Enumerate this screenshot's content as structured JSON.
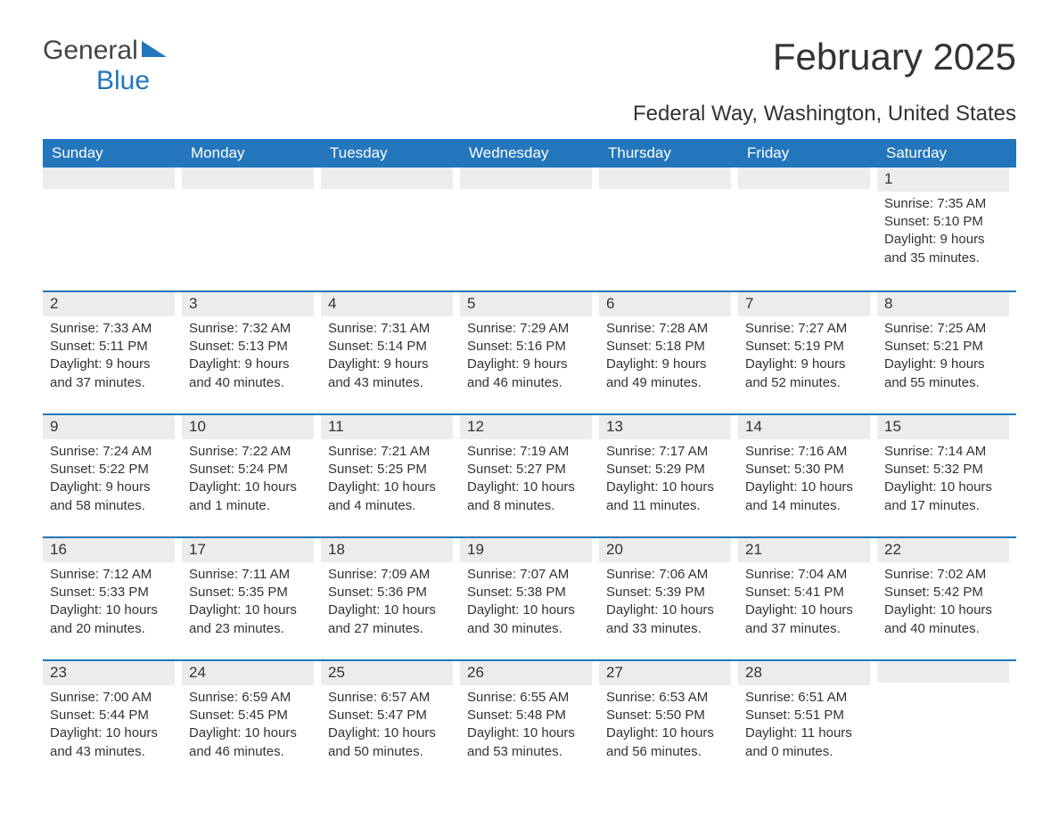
{
  "logo": {
    "word1": "General",
    "word2": "Blue",
    "flag_color": "#2376bb"
  },
  "title": "February 2025",
  "location": "Federal Way, Washington, United States",
  "colors": {
    "header_bg": "#2376bb",
    "header_text": "#ffffff",
    "daynum_bg": "#ececec",
    "divider": "#2376bb",
    "text": "#333333",
    "background": "#ffffff"
  },
  "typography": {
    "title_fontsize": 42,
    "location_fontsize": 24,
    "dow_fontsize": 17,
    "daynum_fontsize": 17,
    "body_fontsize": 15
  },
  "calendar": {
    "day_names": [
      "Sunday",
      "Monday",
      "Tuesday",
      "Wednesday",
      "Thursday",
      "Friday",
      "Saturday"
    ],
    "labels": {
      "sunrise": "Sunrise:",
      "sunset": "Sunset:",
      "daylight": "Daylight:"
    },
    "weeks": [
      [
        null,
        null,
        null,
        null,
        null,
        null,
        {
          "n": "1",
          "sunrise": "7:35 AM",
          "sunset": "5:10 PM",
          "daylight": "9 hours and 35 minutes."
        }
      ],
      [
        {
          "n": "2",
          "sunrise": "7:33 AM",
          "sunset": "5:11 PM",
          "daylight": "9 hours and 37 minutes."
        },
        {
          "n": "3",
          "sunrise": "7:32 AM",
          "sunset": "5:13 PM",
          "daylight": "9 hours and 40 minutes."
        },
        {
          "n": "4",
          "sunrise": "7:31 AM",
          "sunset": "5:14 PM",
          "daylight": "9 hours and 43 minutes."
        },
        {
          "n": "5",
          "sunrise": "7:29 AM",
          "sunset": "5:16 PM",
          "daylight": "9 hours and 46 minutes."
        },
        {
          "n": "6",
          "sunrise": "7:28 AM",
          "sunset": "5:18 PM",
          "daylight": "9 hours and 49 minutes."
        },
        {
          "n": "7",
          "sunrise": "7:27 AM",
          "sunset": "5:19 PM",
          "daylight": "9 hours and 52 minutes."
        },
        {
          "n": "8",
          "sunrise": "7:25 AM",
          "sunset": "5:21 PM",
          "daylight": "9 hours and 55 minutes."
        }
      ],
      [
        {
          "n": "9",
          "sunrise": "7:24 AM",
          "sunset": "5:22 PM",
          "daylight": "9 hours and 58 minutes."
        },
        {
          "n": "10",
          "sunrise": "7:22 AM",
          "sunset": "5:24 PM",
          "daylight": "10 hours and 1 minute."
        },
        {
          "n": "11",
          "sunrise": "7:21 AM",
          "sunset": "5:25 PM",
          "daylight": "10 hours and 4 minutes."
        },
        {
          "n": "12",
          "sunrise": "7:19 AM",
          "sunset": "5:27 PM",
          "daylight": "10 hours and 8 minutes."
        },
        {
          "n": "13",
          "sunrise": "7:17 AM",
          "sunset": "5:29 PM",
          "daylight": "10 hours and 11 minutes."
        },
        {
          "n": "14",
          "sunrise": "7:16 AM",
          "sunset": "5:30 PM",
          "daylight": "10 hours and 14 minutes."
        },
        {
          "n": "15",
          "sunrise": "7:14 AM",
          "sunset": "5:32 PM",
          "daylight": "10 hours and 17 minutes."
        }
      ],
      [
        {
          "n": "16",
          "sunrise": "7:12 AM",
          "sunset": "5:33 PM",
          "daylight": "10 hours and 20 minutes."
        },
        {
          "n": "17",
          "sunrise": "7:11 AM",
          "sunset": "5:35 PM",
          "daylight": "10 hours and 23 minutes."
        },
        {
          "n": "18",
          "sunrise": "7:09 AM",
          "sunset": "5:36 PM",
          "daylight": "10 hours and 27 minutes."
        },
        {
          "n": "19",
          "sunrise": "7:07 AM",
          "sunset": "5:38 PM",
          "daylight": "10 hours and 30 minutes."
        },
        {
          "n": "20",
          "sunrise": "7:06 AM",
          "sunset": "5:39 PM",
          "daylight": "10 hours and 33 minutes."
        },
        {
          "n": "21",
          "sunrise": "7:04 AM",
          "sunset": "5:41 PM",
          "daylight": "10 hours and 37 minutes."
        },
        {
          "n": "22",
          "sunrise": "7:02 AM",
          "sunset": "5:42 PM",
          "daylight": "10 hours and 40 minutes."
        }
      ],
      [
        {
          "n": "23",
          "sunrise": "7:00 AM",
          "sunset": "5:44 PM",
          "daylight": "10 hours and 43 minutes."
        },
        {
          "n": "24",
          "sunrise": "6:59 AM",
          "sunset": "5:45 PM",
          "daylight": "10 hours and 46 minutes."
        },
        {
          "n": "25",
          "sunrise": "6:57 AM",
          "sunset": "5:47 PM",
          "daylight": "10 hours and 50 minutes."
        },
        {
          "n": "26",
          "sunrise": "6:55 AM",
          "sunset": "5:48 PM",
          "daylight": "10 hours and 53 minutes."
        },
        {
          "n": "27",
          "sunrise": "6:53 AM",
          "sunset": "5:50 PM",
          "daylight": "10 hours and 56 minutes."
        },
        {
          "n": "28",
          "sunrise": "6:51 AM",
          "sunset": "5:51 PM",
          "daylight": "11 hours and 0 minutes."
        },
        null
      ]
    ]
  }
}
